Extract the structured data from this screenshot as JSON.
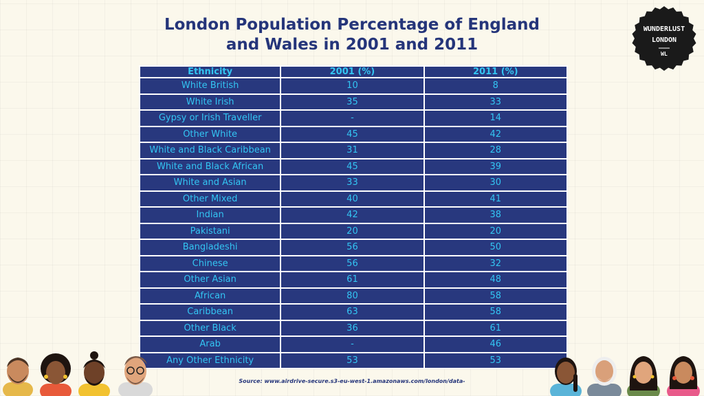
{
  "title_line1": "London Population Percentage of England",
  "title_line2": "and Wales in 2001 and 2011",
  "logo": {
    "line1": "WUNDERLUST",
    "line2": "LONDON",
    "mark": "WL",
    "bg_color": "#1a1a1a"
  },
  "source": "Source: www.airdrive-secure.s3-eu-west-1.amazonaws.com/london/data-",
  "colors": {
    "cell_bg": "#28387e",
    "cell_text": "#33c5f3",
    "title": "#25357a"
  },
  "chart_data": {
    "type": "table",
    "columns": [
      "Ethnicity",
      "2001 (%)",
      "2011 (%)"
    ],
    "rows": [
      [
        "White British",
        "10",
        "8"
      ],
      [
        "White Irish",
        "35",
        "33"
      ],
      [
        "Gypsy or Irish Traveller",
        "-",
        "14"
      ],
      [
        "Other White",
        "45",
        "42"
      ],
      [
        "White and Black Caribbean",
        "31",
        "28"
      ],
      [
        "White and Black African",
        "45",
        "39"
      ],
      [
        "White and Asian",
        "33",
        "30"
      ],
      [
        "Other Mixed",
        "40",
        "41"
      ],
      [
        "Indian",
        "42",
        "38"
      ],
      [
        "Pakistani",
        "20",
        "20"
      ],
      [
        "Bangladeshi",
        "56",
        "50"
      ],
      [
        "Chinese",
        "56",
        "32"
      ],
      [
        "Other Asian",
        "61",
        "48"
      ],
      [
        "African",
        "80",
        "58"
      ],
      [
        "Caribbean",
        "63",
        "58"
      ],
      [
        "Other Black",
        "36",
        "61"
      ],
      [
        "Arab",
        "-",
        "46"
      ],
      [
        "Any Other Ethnicity",
        "53",
        "53"
      ]
    ]
  },
  "illustrations": {
    "left": [
      "man-with-beard-icon",
      "woman-curly-hair-icon",
      "man-with-bun-icon",
      "man-with-glasses-icon"
    ],
    "right": [
      "woman-braids-icon",
      "elder-man-icon",
      "woman-dark-hair-icon",
      "woman-earrings-icon"
    ]
  }
}
